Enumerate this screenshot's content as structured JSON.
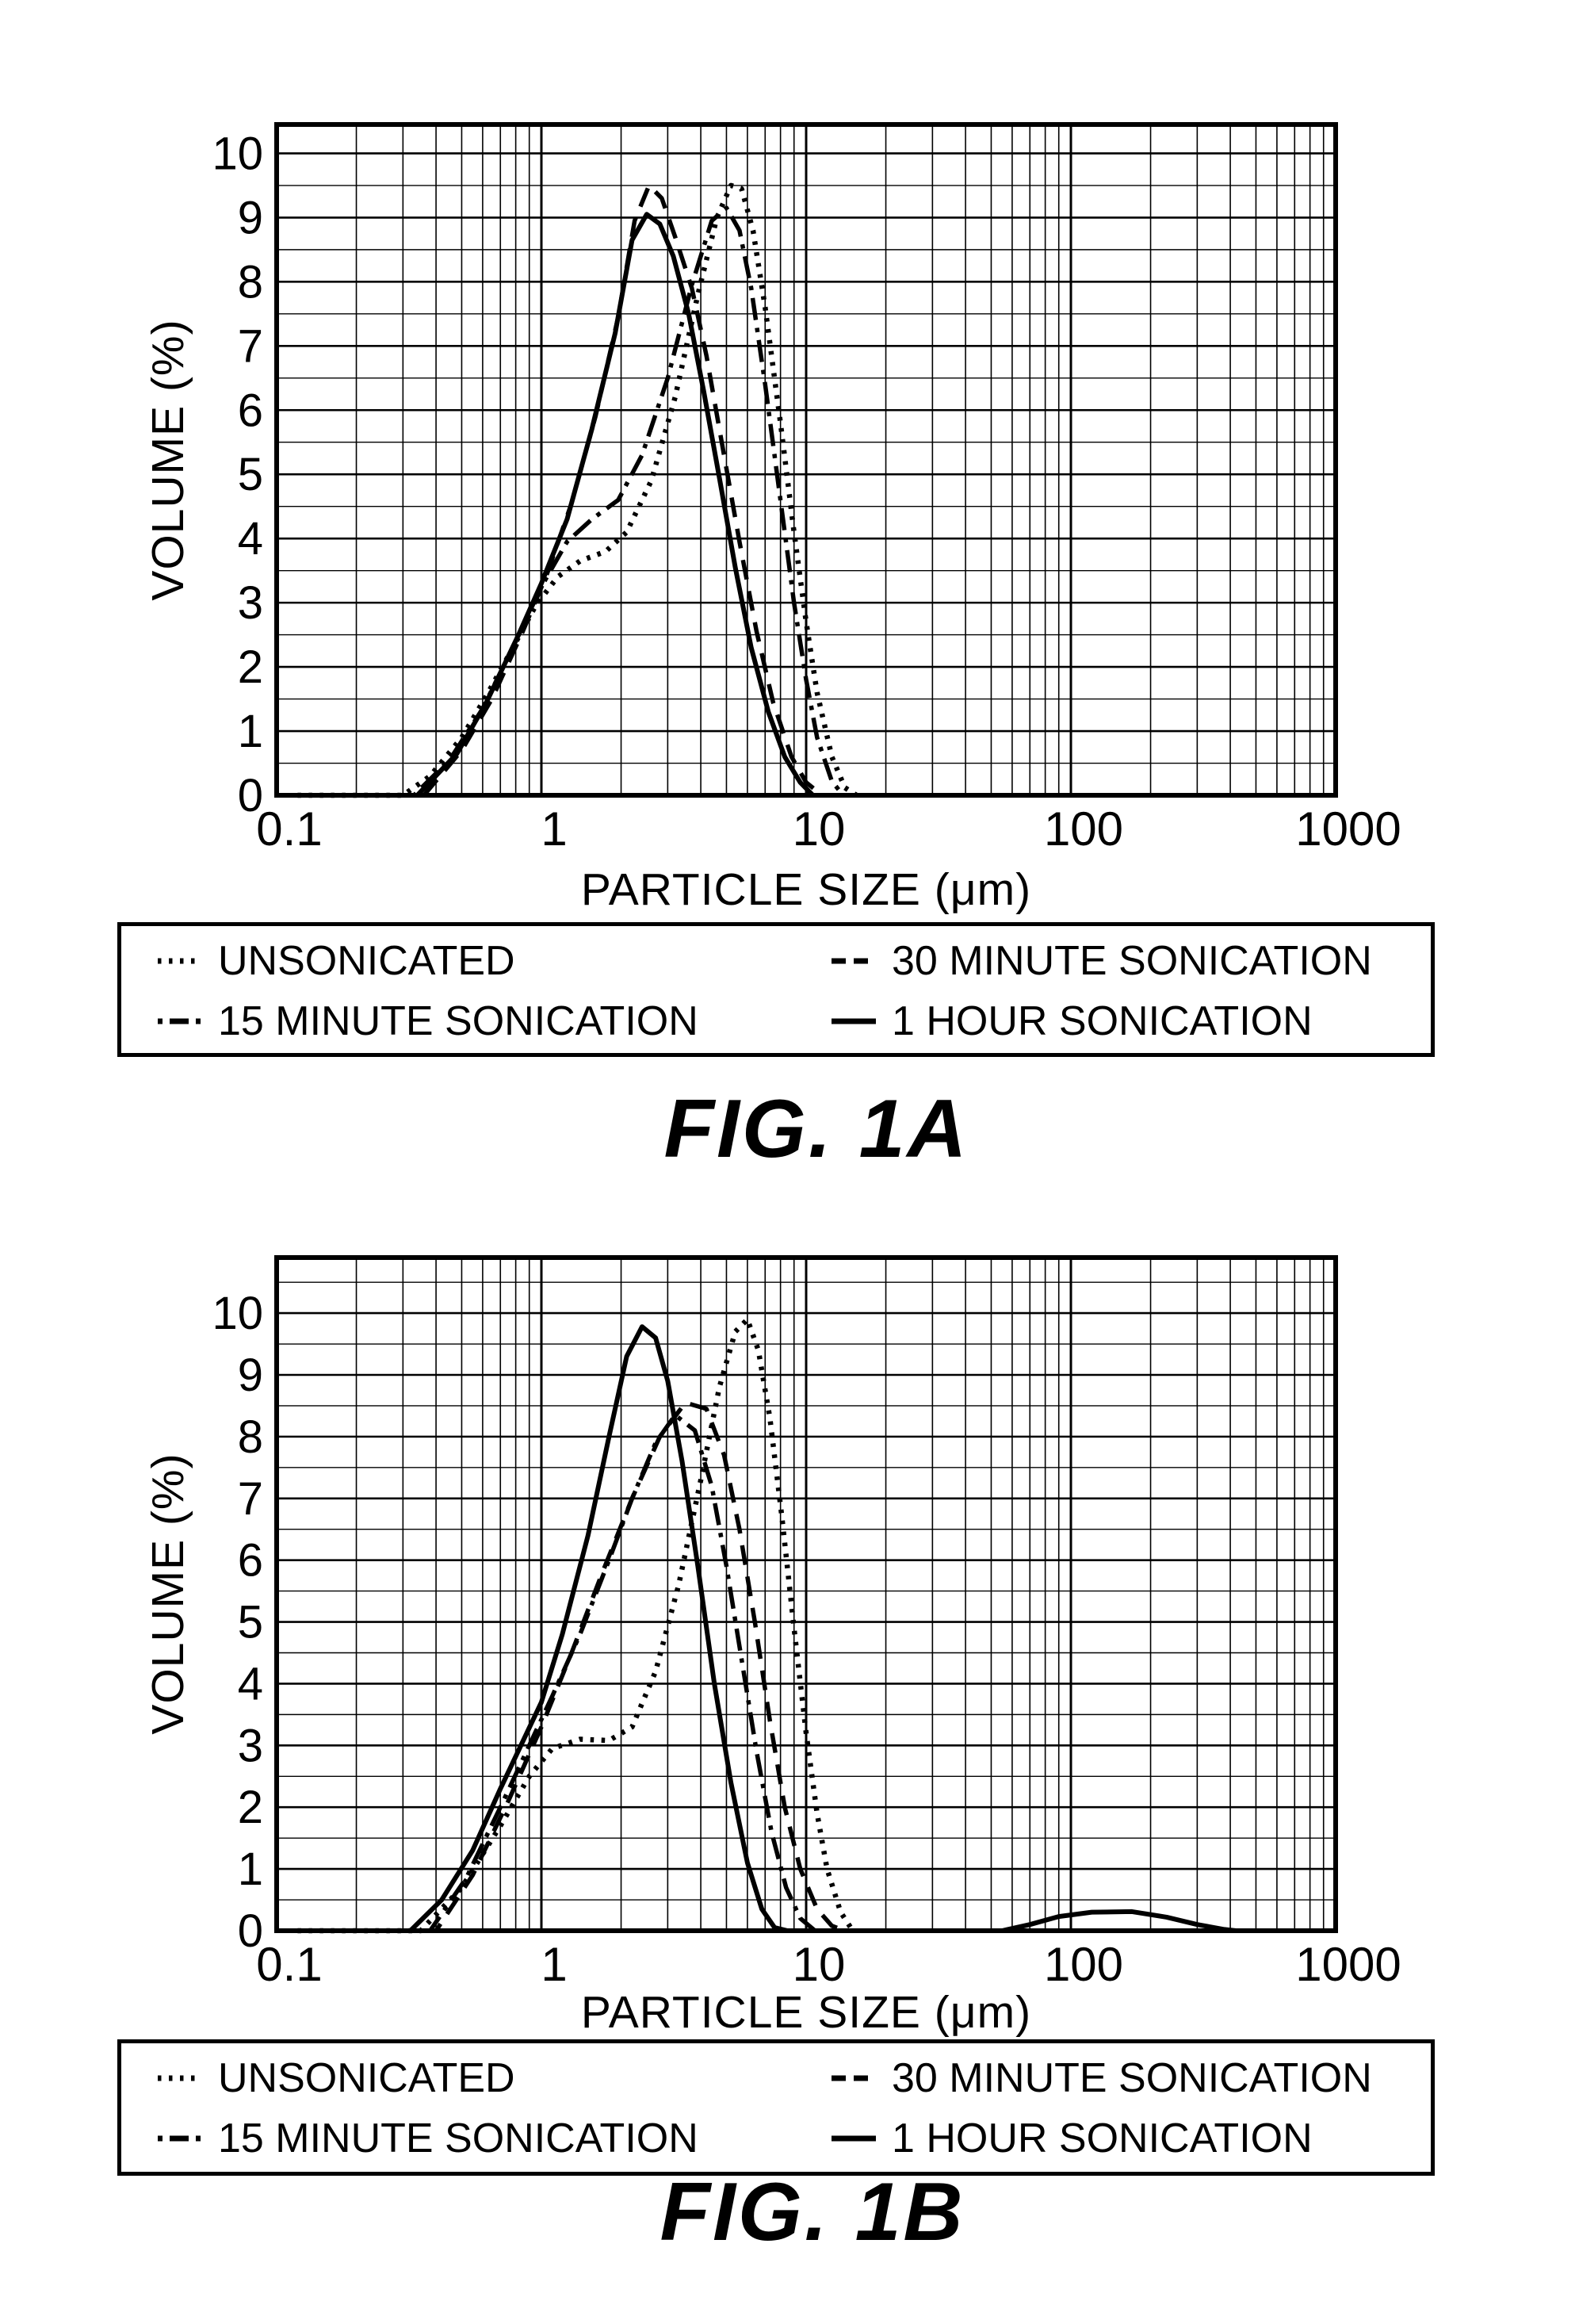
{
  "page": {
    "background": "#ffffff",
    "ink": "#000000"
  },
  "chart_data": [
    {
      "type": "line",
      "title": "FIG. 1A",
      "xlabel": "PARTICLE SIZE (μm)",
      "ylabel": "VOLUME (%)",
      "x_scale": "log",
      "xlim": [
        0.1,
        1000
      ],
      "ylim": [
        0,
        10.45
      ],
      "x_ticks": [
        "0.1",
        "1",
        "10",
        "100",
        "1000"
      ],
      "y_ticks": [
        "0",
        "1",
        "2",
        "3",
        "4",
        "5",
        "6",
        "7",
        "8",
        "9",
        "10"
      ],
      "grid": true,
      "legend_position": "below",
      "series": [
        {
          "name": "UNSONICATED",
          "line_style": "dotted",
          "points": [
            [
              0.12,
              0
            ],
            [
              0.3,
              0
            ],
            [
              0.38,
              0.3
            ],
            [
              0.5,
              0.9
            ],
            [
              0.62,
              1.55
            ],
            [
              0.78,
              2.3
            ],
            [
              0.95,
              2.95
            ],
            [
              1.15,
              3.4
            ],
            [
              1.4,
              3.65
            ],
            [
              1.75,
              3.8
            ],
            [
              2.1,
              4.1
            ],
            [
              2.6,
              4.9
            ],
            [
              3.2,
              6.2
            ],
            [
              3.9,
              7.8
            ],
            [
              4.6,
              9.0
            ],
            [
              5.2,
              9.5
            ],
            [
              5.7,
              9.45
            ],
            [
              6.3,
              8.8
            ],
            [
              7.0,
              7.6
            ],
            [
              8.0,
              5.8
            ],
            [
              9.0,
              4.1
            ],
            [
              10.0,
              2.7
            ],
            [
              11.0,
              1.6
            ],
            [
              12.5,
              0.6
            ],
            [
              14.0,
              0.12
            ],
            [
              15.5,
              0
            ]
          ]
        },
        {
          "name": "15 MINUTE SONICATION",
          "line_style": "dashdot",
          "points": [
            [
              0.12,
              0
            ],
            [
              0.33,
              0
            ],
            [
              0.45,
              0.55
            ],
            [
              0.6,
              1.35
            ],
            [
              0.8,
              2.4
            ],
            [
              1.0,
              3.25
            ],
            [
              1.25,
              3.95
            ],
            [
              1.55,
              4.3
            ],
            [
              1.95,
              4.6
            ],
            [
              2.4,
              5.3
            ],
            [
              3.0,
              6.5
            ],
            [
              3.7,
              7.95
            ],
            [
              4.4,
              8.95
            ],
            [
              5.0,
              9.15
            ],
            [
              5.6,
              8.8
            ],
            [
              6.2,
              7.9
            ],
            [
              7.0,
              6.4
            ],
            [
              8.0,
              4.6
            ],
            [
              9.0,
              3.0
            ],
            [
              10.0,
              1.8
            ],
            [
              11.0,
              0.9
            ],
            [
              12.5,
              0.22
            ],
            [
              13.8,
              0
            ]
          ]
        },
        {
          "name": "30 MINUTE SONICATION",
          "line_style": "dashed",
          "points": [
            [
              0.12,
              0
            ],
            [
              0.36,
              0
            ],
            [
              0.5,
              0.7
            ],
            [
              0.65,
              1.5
            ],
            [
              0.85,
              2.55
            ],
            [
              1.05,
              3.45
            ],
            [
              1.3,
              4.55
            ],
            [
              1.6,
              5.9
            ],
            [
              1.95,
              7.45
            ],
            [
              2.25,
              8.95
            ],
            [
              2.55,
              9.5
            ],
            [
              2.85,
              9.3
            ],
            [
              3.2,
              8.7
            ],
            [
              3.7,
              7.9
            ],
            [
              4.2,
              6.85
            ],
            [
              4.8,
              5.5
            ],
            [
              5.6,
              3.95
            ],
            [
              6.5,
              2.55
            ],
            [
              7.5,
              1.45
            ],
            [
              8.8,
              0.6
            ],
            [
              10.0,
              0.2
            ],
            [
              11.5,
              0
            ]
          ]
        },
        {
          "name": "1 HOUR SONICATION",
          "line_style": "solid",
          "points": [
            [
              0.12,
              0
            ],
            [
              0.34,
              0
            ],
            [
              0.48,
              0.65
            ],
            [
              0.62,
              1.45
            ],
            [
              0.82,
              2.5
            ],
            [
              1.0,
              3.3
            ],
            [
              1.25,
              4.3
            ],
            [
              1.55,
              5.7
            ],
            [
              1.9,
              7.2
            ],
            [
              2.2,
              8.65
            ],
            [
              2.5,
              9.05
            ],
            [
              2.8,
              8.9
            ],
            [
              3.15,
              8.4
            ],
            [
              3.6,
              7.5
            ],
            [
              4.1,
              6.3
            ],
            [
              4.7,
              4.95
            ],
            [
              5.4,
              3.55
            ],
            [
              6.2,
              2.3
            ],
            [
              7.2,
              1.3
            ],
            [
              8.3,
              0.6
            ],
            [
              9.5,
              0.2
            ],
            [
              10.6,
              0
            ]
          ]
        }
      ]
    },
    {
      "type": "line",
      "title": "FIG. 1B",
      "xlabel": "PARTICLE SIZE (μm)",
      "ylabel": "VOLUME (%)",
      "x_scale": "log",
      "xlim": [
        0.1,
        1000
      ],
      "ylim": [
        0,
        10.9
      ],
      "x_ticks": [
        "0.1",
        "1",
        "10",
        "100",
        "1000"
      ],
      "y_ticks": [
        "0",
        "1",
        "2",
        "3",
        "4",
        "5",
        "6",
        "7",
        "8",
        "9",
        "10"
      ],
      "grid": true,
      "legend_position": "below",
      "series": [
        {
          "name": "UNSONICATED",
          "line_style": "dotted",
          "points": [
            [
              0.12,
              0
            ],
            [
              0.35,
              0
            ],
            [
              0.5,
              0.7
            ],
            [
              0.7,
              1.7
            ],
            [
              0.9,
              2.5
            ],
            [
              1.1,
              2.95
            ],
            [
              1.4,
              3.1
            ],
            [
              1.8,
              3.08
            ],
            [
              2.2,
              3.3
            ],
            [
              2.7,
              4.2
            ],
            [
              3.3,
              5.6
            ],
            [
              4.0,
              7.3
            ],
            [
              4.7,
              8.8
            ],
            [
              5.4,
              9.7
            ],
            [
              6.0,
              9.9
            ],
            [
              6.6,
              9.4
            ],
            [
              7.3,
              8.3
            ],
            [
              8.1,
              6.7
            ],
            [
              9.0,
              4.9
            ],
            [
              10.0,
              3.2
            ],
            [
              11.0,
              1.9
            ],
            [
              12.0,
              1.0
            ],
            [
              13.5,
              0.3
            ],
            [
              15.0,
              0
            ]
          ]
        },
        {
          "name": "15 MINUTE SONICATION",
          "line_style": "dashdot",
          "points": [
            [
              0.12,
              0
            ],
            [
              0.38,
              0
            ],
            [
              0.52,
              0.85
            ],
            [
              0.7,
              2.0
            ],
            [
              0.9,
              3.0
            ],
            [
              1.1,
              3.8
            ],
            [
              1.4,
              4.8
            ],
            [
              1.8,
              6.0
            ],
            [
              2.2,
              7.0
            ],
            [
              2.7,
              7.9
            ],
            [
              3.2,
              8.35
            ],
            [
              3.8,
              8.1
            ],
            [
              4.4,
              7.2
            ],
            [
              5.0,
              5.9
            ],
            [
              5.7,
              4.4
            ],
            [
              6.5,
              2.9
            ],
            [
              7.4,
              1.6
            ],
            [
              8.4,
              0.7
            ],
            [
              9.5,
              0.2
            ],
            [
              10.8,
              0
            ]
          ]
        },
        {
          "name": "30 MINUTE SONICATION",
          "line_style": "dashed",
          "points": [
            [
              0.12,
              0
            ],
            [
              0.4,
              0
            ],
            [
              0.55,
              0.9
            ],
            [
              0.75,
              2.1
            ],
            [
              1.0,
              3.3
            ],
            [
              1.3,
              4.5
            ],
            [
              1.7,
              5.8
            ],
            [
              2.2,
              7.0
            ],
            [
              2.8,
              8.0
            ],
            [
              3.5,
              8.55
            ],
            [
              4.2,
              8.45
            ],
            [
              4.9,
              7.7
            ],
            [
              5.6,
              6.5
            ],
            [
              6.4,
              5.0
            ],
            [
              7.3,
              3.4
            ],
            [
              8.3,
              2.0
            ],
            [
              9.5,
              1.0
            ],
            [
              11.0,
              0.35
            ],
            [
              12.5,
              0.08
            ],
            [
              14.0,
              0
            ]
          ]
        },
        {
          "name": "1 HOUR SONICATION",
          "line_style": "solid",
          "points": [
            [
              0.12,
              0
            ],
            [
              0.32,
              0
            ],
            [
              0.42,
              0.5
            ],
            [
              0.55,
              1.3
            ],
            [
              0.7,
              2.3
            ],
            [
              0.88,
              3.2
            ],
            [
              1.0,
              3.7
            ],
            [
              1.2,
              4.8
            ],
            [
              1.5,
              6.4
            ],
            [
              1.8,
              8.0
            ],
            [
              2.1,
              9.3
            ],
            [
              2.4,
              9.78
            ],
            [
              2.7,
              9.6
            ],
            [
              3.0,
              8.9
            ],
            [
              3.4,
              7.6
            ],
            [
              3.9,
              5.9
            ],
            [
              4.5,
              4.0
            ],
            [
              5.2,
              2.4
            ],
            [
              6.0,
              1.1
            ],
            [
              6.8,
              0.35
            ],
            [
              7.6,
              0.05
            ],
            [
              8.5,
              0
            ],
            [
              55,
              0
            ],
            [
              70,
              0.1
            ],
            [
              90,
              0.23
            ],
            [
              120,
              0.3
            ],
            [
              170,
              0.31
            ],
            [
              230,
              0.22
            ],
            [
              300,
              0.1
            ],
            [
              380,
              0.02
            ],
            [
              420,
              0
            ]
          ]
        }
      ]
    }
  ]
}
